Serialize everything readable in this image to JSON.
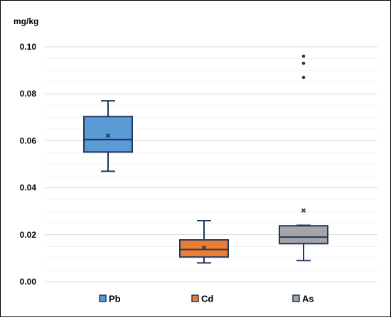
{
  "chart_data": {
    "type": "box",
    "ylabel": "mg/kg",
    "ylim": [
      0.0,
      0.1
    ],
    "yticks": [
      "0.00",
      "0.02",
      "0.04",
      "0.06",
      "0.08",
      "0.10"
    ],
    "ytick_values": [
      0.0,
      0.02,
      0.04,
      0.06,
      0.08,
      0.1
    ],
    "grid": true,
    "legend_position": "bottom",
    "series": [
      {
        "name": "Pb",
        "color": "#5b9bd5",
        "min": 0.047,
        "q1": 0.0552,
        "median": 0.0605,
        "q3": 0.0703,
        "max": 0.077,
        "mean": 0.0622,
        "outliers": []
      },
      {
        "name": "Cd",
        "color": "#ed7d31",
        "min": 0.008,
        "q1": 0.0105,
        "median": 0.0137,
        "q3": 0.0178,
        "max": 0.026,
        "mean": 0.0145,
        "outliers": []
      },
      {
        "name": "As",
        "color": "#a5a5a5",
        "min": 0.009,
        "q1": 0.0162,
        "median": 0.019,
        "q3": 0.0238,
        "max": 0.024,
        "mean": 0.0303,
        "outliers": [
          0.087,
          0.093,
          0.096
        ]
      }
    ]
  }
}
